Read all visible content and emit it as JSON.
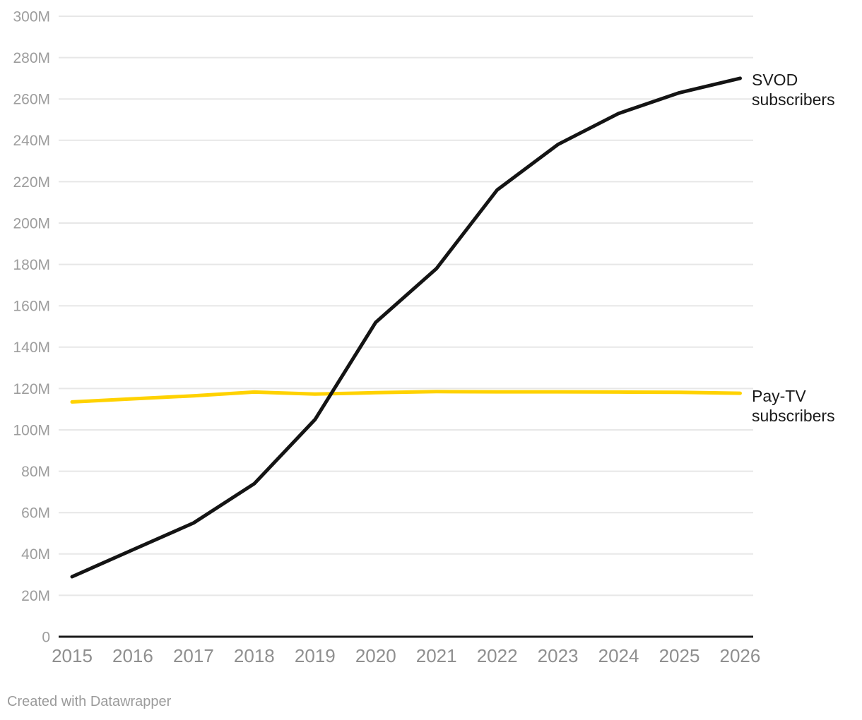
{
  "chart_data": {
    "type": "line",
    "x": [
      2015,
      2016,
      2017,
      2018,
      2019,
      2020,
      2021,
      2022,
      2023,
      2024,
      2025,
      2026
    ],
    "series": [
      {
        "name": "SVOD subscribers",
        "color": "#141414",
        "values": [
          29,
          42,
          55,
          74,
          105,
          152,
          178,
          216,
          238,
          253,
          263,
          270
        ]
      },
      {
        "name": "Pay-TV subscribers",
        "color": "#FFD200",
        "values": [
          113.5,
          115,
          116.5,
          118.3,
          117.3,
          118,
          118.5,
          118.4,
          118.4,
          118.3,
          118.2,
          117.7
        ]
      }
    ],
    "unit": "M",
    "ylim": [
      0,
      300
    ],
    "ytick_step": 20,
    "ytick_labels": [
      "0",
      "20M",
      "40M",
      "60M",
      "80M",
      "100M",
      "120M",
      "140M",
      "160M",
      "180M",
      "200M",
      "220M",
      "240M",
      "260M",
      "280M",
      "300M"
    ],
    "xtick_labels": [
      "2015",
      "2016",
      "2017",
      "2018",
      "2019",
      "2020",
      "2021",
      "2022",
      "2023",
      "2024",
      "2025",
      "2026"
    ],
    "grid": "horizontal",
    "legend_position": "right-inline-labels",
    "title": "",
    "xlabel": "",
    "ylabel": ""
  },
  "annotations": {
    "svod_label": "SVOD subscribers",
    "paytv_label": "Pay-TV subscribers"
  },
  "footer": {
    "credit": "Created with Datawrapper"
  },
  "colors": {
    "svod": "#141414",
    "paytv": "#FFD200",
    "grid": "#e7e7e7",
    "axis": "#1a1a1a",
    "y_tick_label": "#9d9d9d",
    "x_tick_label": "#8f8f8f",
    "annotation_text": "#1a1a1a",
    "footer_text": "#9b9b9b",
    "background": "#ffffff"
  }
}
